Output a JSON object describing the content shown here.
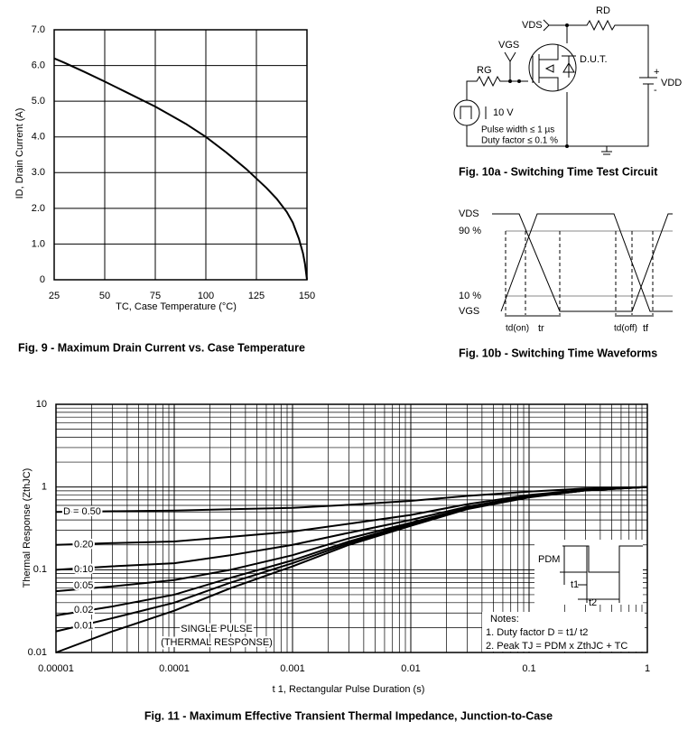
{
  "chart_data": [
    {
      "type": "line",
      "title": "Fig. 9 - Maximum Drain Current vs. Case Temperature",
      "x_label": "TC, Case Temperature (°C)",
      "y_label": "ID, Drain Current (A)",
      "x": [
        25,
        30,
        40,
        50,
        60,
        75,
        90,
        100,
        110,
        120,
        130,
        135,
        140,
        143,
        146,
        148,
        149,
        150
      ],
      "values": [
        6.2,
        6.08,
        5.82,
        5.55,
        5.27,
        4.85,
        4.37,
        4.0,
        3.57,
        3.1,
        2.57,
        2.27,
        1.9,
        1.6,
        1.15,
        0.75,
        0.45,
        0
      ],
      "color": "#000000",
      "xlim": [
        25,
        150
      ],
      "ylim": [
        0,
        7
      ],
      "xticks": [
        25,
        50,
        75,
        100,
        125,
        150
      ],
      "yticks": [
        0,
        {
          "value": 1,
          "label": "1.0"
        },
        {
          "value": 2,
          "label": "2.0"
        },
        {
          "value": 3,
          "label": "3.0"
        },
        {
          "value": 4,
          "label": "4.0"
        },
        {
          "value": 5,
          "label": "5.0"
        },
        {
          "value": 6,
          "label": "6.0"
        },
        {
          "value": 7,
          "label": "7.0"
        }
      ],
      "grid": true
    },
    {
      "type": "line",
      "title": "Fig. 11 - Maximum Effective Transient Thermal Impedance, Junction-to-Case",
      "x_label": "t 1, Rectangular Pulse Duration (s)",
      "y_label": "Thermal Response (ZthJC)",
      "log_x": true,
      "log_y": true,
      "grid": true,
      "x": [
        1e-05,
        3e-05,
        0.0001,
        0.0003,
        0.001,
        0.003,
        0.01,
        0.03,
        0.1,
        0.3,
        1
      ],
      "series": [
        {
          "name": "D = 0.50",
          "color": "#000000",
          "values": [
            0.5,
            0.51,
            0.52,
            0.54,
            0.56,
            0.61,
            0.68,
            0.78,
            0.88,
            0.96,
            1.0
          ]
        },
        {
          "name": "0.20",
          "color": "#000000",
          "values": [
            0.2,
            0.21,
            0.22,
            0.25,
            0.29,
            0.36,
            0.46,
            0.62,
            0.8,
            0.93,
            1.0
          ]
        },
        {
          "name": "0.10",
          "color": "#000000",
          "values": [
            0.1,
            0.11,
            0.12,
            0.15,
            0.2,
            0.28,
            0.4,
            0.58,
            0.78,
            0.92,
            1.0
          ]
        },
        {
          "name": "0.05",
          "color": "#000000",
          "values": [
            0.055,
            0.063,
            0.075,
            0.1,
            0.15,
            0.24,
            0.37,
            0.56,
            0.77,
            0.92,
            1.0
          ]
        },
        {
          "name": "0.02",
          "color": "#000000",
          "values": [
            0.028,
            0.036,
            0.05,
            0.08,
            0.13,
            0.22,
            0.36,
            0.55,
            0.76,
            0.91,
            1.0
          ]
        },
        {
          "name": "0.01",
          "color": "#000000",
          "values": [
            0.018,
            0.026,
            0.04,
            0.07,
            0.12,
            0.21,
            0.35,
            0.55,
            0.76,
            0.91,
            1.0
          ]
        },
        {
          "name": "SINGLE PULSE",
          "color": "#000000",
          "values": [
            0.01,
            0.018,
            0.032,
            0.06,
            0.11,
            0.2,
            0.34,
            0.54,
            0.75,
            0.91,
            1.0
          ]
        }
      ],
      "single_pulse_note": "(THERMAL RESPONSE)",
      "xlim": [
        1e-05,
        1
      ],
      "ylim": [
        0.01,
        10
      ],
      "xticks": [
        1e-05,
        0.0001,
        0.001,
        0.01,
        0.1,
        1
      ],
      "yticks": [
        0.01,
        0.1,
        1,
        10
      ],
      "notes": [
        "Notes:",
        "1. Duty factor D = t1/ t2",
        "2. Peak TJ = PDM x ZthJC + TC"
      ],
      "inset_labels": {
        "pdm": "PDM",
        "t1": "t1",
        "t2": "t2"
      }
    }
  ],
  "circuit": {
    "caption": "Fig. 10a - Switching Time Test Circuit",
    "vds": "VDS",
    "rd": "RD",
    "vgs": "VGS",
    "rg": "RG",
    "dut": "D.U.T.",
    "plus": "+",
    "minus": "-",
    "vdd": "VDD",
    "source": "10 V",
    "pulse_width": "Pulse width ≤ 1 µs",
    "duty_factor": "Duty factor ≤ 0.1 %"
  },
  "waveforms": {
    "caption": "Fig. 10b - Switching Time Waveforms",
    "vds": "VDS",
    "p90": "90 %",
    "p10": "10 %",
    "vgs": "VGS",
    "td_on": "td(on)",
    "tr": "tr",
    "td_off": "td(off)",
    "tf": "tf"
  }
}
